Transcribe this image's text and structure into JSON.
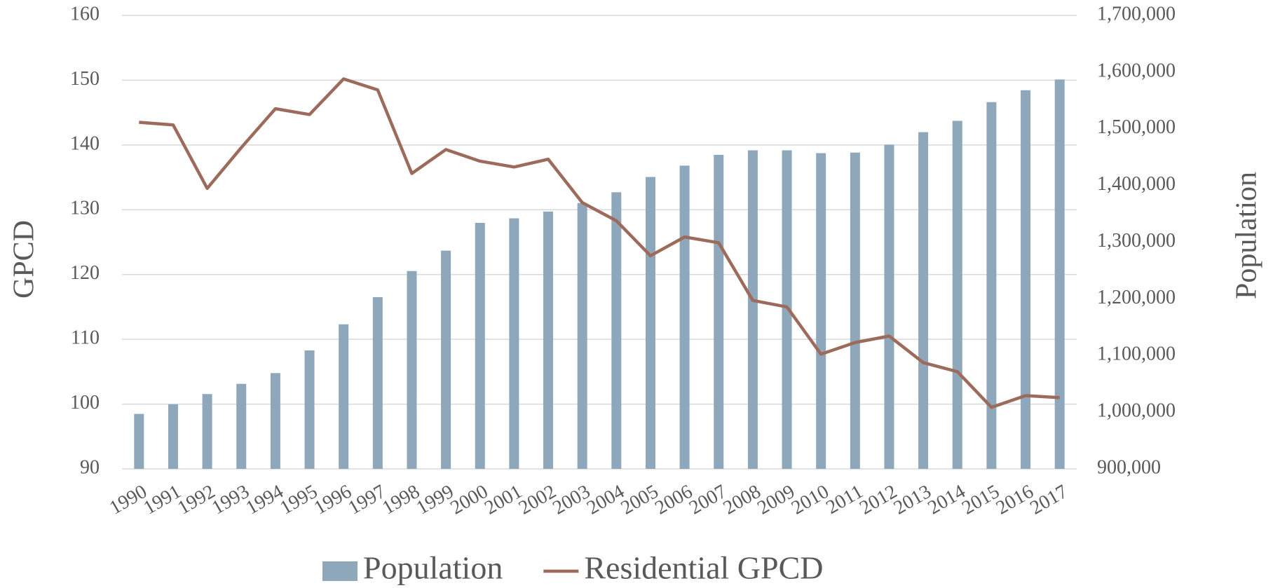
{
  "chart_data": {
    "type": "bar-line",
    "y_label": "GPCD",
    "y2_label": "Population",
    "categories": [
      "1990",
      "1991",
      "1992",
      "1993",
      "1994",
      "1995",
      "1996",
      "1997",
      "1998",
      "1999",
      "2000",
      "2001",
      "2002",
      "2003",
      "2004",
      "2005",
      "2006",
      "2007",
      "2008",
      "2009",
      "2010",
      "2011",
      "2012",
      "2013",
      "2014",
      "2015",
      "2016",
      "2017"
    ],
    "series": [
      {
        "name": "Population",
        "type": "bar",
        "axis": "y2",
        "color": "#8fa7bb",
        "values": [
          997000,
          1014000,
          1032000,
          1050000,
          1069000,
          1109000,
          1155000,
          1203000,
          1249000,
          1285000,
          1334000,
          1342000,
          1354000,
          1369000,
          1388000,
          1415000,
          1435000,
          1454000,
          1462000,
          1462000,
          1457000,
          1458000,
          1472000,
          1494000,
          1514000,
          1547000,
          1568000,
          1587000
        ]
      },
      {
        "name": "Residential GPCD",
        "type": "line",
        "axis": "y",
        "color": "#9c6b5b",
        "values": [
          143.5,
          143.1,
          133.3,
          139.6,
          145.6,
          144.7,
          150.2,
          148.5,
          135.6,
          139.3,
          137.5,
          136.6,
          137.8,
          131.1,
          128.3,
          122.9,
          125.8,
          124.9,
          116.0,
          115.0,
          107.7,
          109.5,
          110.5,
          106.4,
          105.0,
          99.5,
          101.3,
          101.0
        ]
      }
    ],
    "ylim": [
      90,
      160
    ],
    "yticks": [
      90,
      100,
      110,
      120,
      130,
      140,
      150,
      160
    ],
    "y2lim": [
      900000,
      1700000
    ],
    "y2ticks": [
      {
        "value": 900000,
        "label": "900,000"
      },
      {
        "value": 1000000,
        "label": "1,000,000"
      },
      {
        "value": 1100000,
        "label": "1,100,000"
      },
      {
        "value": 1200000,
        "label": "1,200,000"
      },
      {
        "value": 1300000,
        "label": "1,300,000"
      },
      {
        "value": 1400000,
        "label": "1,400,000"
      },
      {
        "value": 1500000,
        "label": "1,500,000"
      },
      {
        "value": 1600000,
        "label": "1,600,000"
      },
      {
        "value": 1700000,
        "label": "1,700,000"
      }
    ],
    "grid": true,
    "legend": "bottom"
  }
}
